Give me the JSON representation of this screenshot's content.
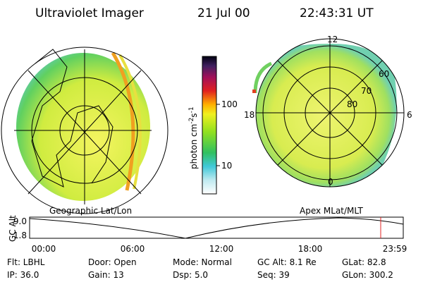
{
  "header": {
    "title": "Ultraviolet Imager",
    "date": "21 Jul 00",
    "time": "22:43:31 UT"
  },
  "left_image": {
    "caption": "Geographic Lat/Lon"
  },
  "right_image": {
    "caption": "Apex MLat/MLT",
    "mlt_labels": {
      "top": "12",
      "left": "18",
      "right": "6",
      "bottom": "0"
    },
    "lat_labels": [
      "60",
      "70",
      "80"
    ]
  },
  "colorbar": {
    "label": {
      "base": "photon cm",
      "exp1": "-2",
      "mid": "s",
      "exp2": "-1"
    },
    "ticks": [
      "100",
      "10"
    ]
  },
  "orbit_plot": {
    "ylabel": "GC Alt",
    "yticks": [
      "9.0",
      "1.8"
    ],
    "xticks": [
      "00:00",
      "06:00",
      "12:00",
      "18:00",
      "23:59"
    ]
  },
  "footer": {
    "rows": [
      [
        "Flt: LBHL",
        "Door: Open",
        "Mode: Normal",
        "GC Alt: 8.1 Re",
        "GLat: 82.8"
      ],
      [
        "IP: 36.0",
        "Gain: 13",
        "Dsp:   5.0",
        "Seq: 39",
        "GLon: 300.2"
      ]
    ]
  }
}
